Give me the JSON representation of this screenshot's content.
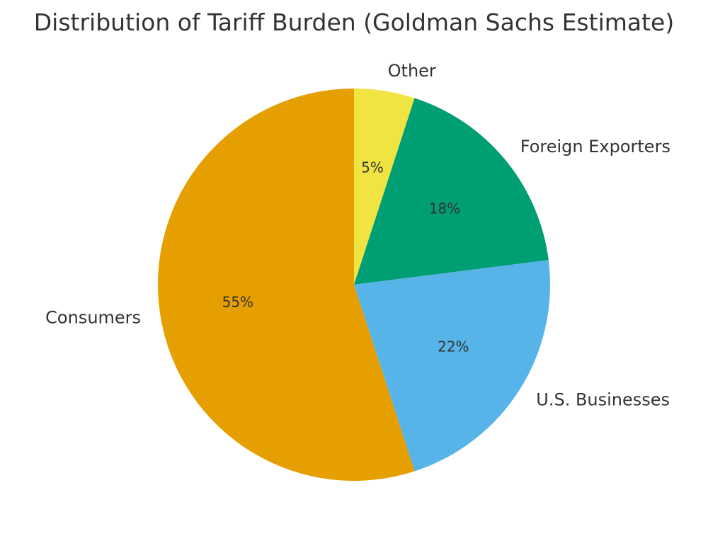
{
  "chart_data": {
    "type": "pie",
    "title": "Distribution of Tariff Burden (Goldman Sachs Estimate)",
    "slices": [
      {
        "label": "Other",
        "value": 5,
        "value_label": "5%",
        "color": "#F0E442"
      },
      {
        "label": "Foreign Exporters",
        "value": 18,
        "value_label": "18%",
        "color": "#009E73"
      },
      {
        "label": "U.S. Businesses",
        "value": 22,
        "value_label": "22%",
        "color": "#56B4E9"
      },
      {
        "label": "Consumers",
        "value": 55,
        "value_label": "55%",
        "color": "#E69F00"
      }
    ],
    "start_angle": "12 o'clock",
    "direction": "clockwise",
    "legend": "none"
  }
}
